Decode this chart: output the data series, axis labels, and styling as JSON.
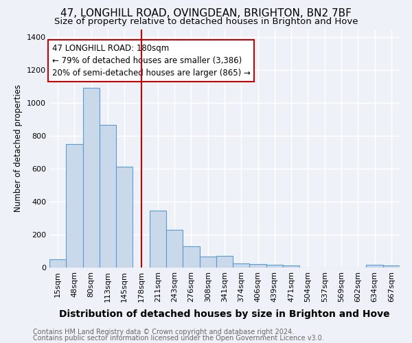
{
  "title": "47, LONGHILL ROAD, OVINGDEAN, BRIGHTON, BN2 7BF",
  "subtitle": "Size of property relative to detached houses in Brighton and Hove",
  "xlabel": "Distribution of detached houses by size in Brighton and Hove",
  "ylabel": "Number of detached properties",
  "footnote1": "Contains HM Land Registry data © Crown copyright and database right 2024.",
  "footnote2": "Contains public sector information licensed under the Open Government Licence v3.0.",
  "categories": [
    "15sqm",
    "48sqm",
    "80sqm",
    "113sqm",
    "145sqm",
    "178sqm",
    "211sqm",
    "243sqm",
    "276sqm",
    "308sqm",
    "341sqm",
    "374sqm",
    "406sqm",
    "439sqm",
    "471sqm",
    "504sqm",
    "537sqm",
    "569sqm",
    "602sqm",
    "634sqm",
    "667sqm"
  ],
  "values": [
    52,
    750,
    1095,
    868,
    615,
    0,
    348,
    228,
    130,
    65,
    70,
    25,
    20,
    15,
    12,
    0,
    0,
    0,
    0,
    15,
    12
  ],
  "bar_color": "#c9d9ea",
  "bar_edge_color": "#5b9bd5",
  "marker_index": 5,
  "vline_color": "#cc0000",
  "annotation_text": "47 LONGHILL ROAD: 180sqm\n← 79% of detached houses are smaller (3,386)\n20% of semi-detached houses are larger (865) →",
  "annotation_box_color": "white",
  "annotation_box_edge": "#cc0000",
  "ylim": [
    0,
    1450
  ],
  "yticks": [
    0,
    200,
    400,
    600,
    800,
    1000,
    1200,
    1400
  ],
  "background_color": "#eef2f8",
  "title_fontsize": 11,
  "subtitle_fontsize": 9.5,
  "xlabel_fontsize": 10,
  "ylabel_fontsize": 8.5,
  "tick_fontsize": 8,
  "annotation_fontsize": 8.5,
  "footnote_fontsize": 7
}
